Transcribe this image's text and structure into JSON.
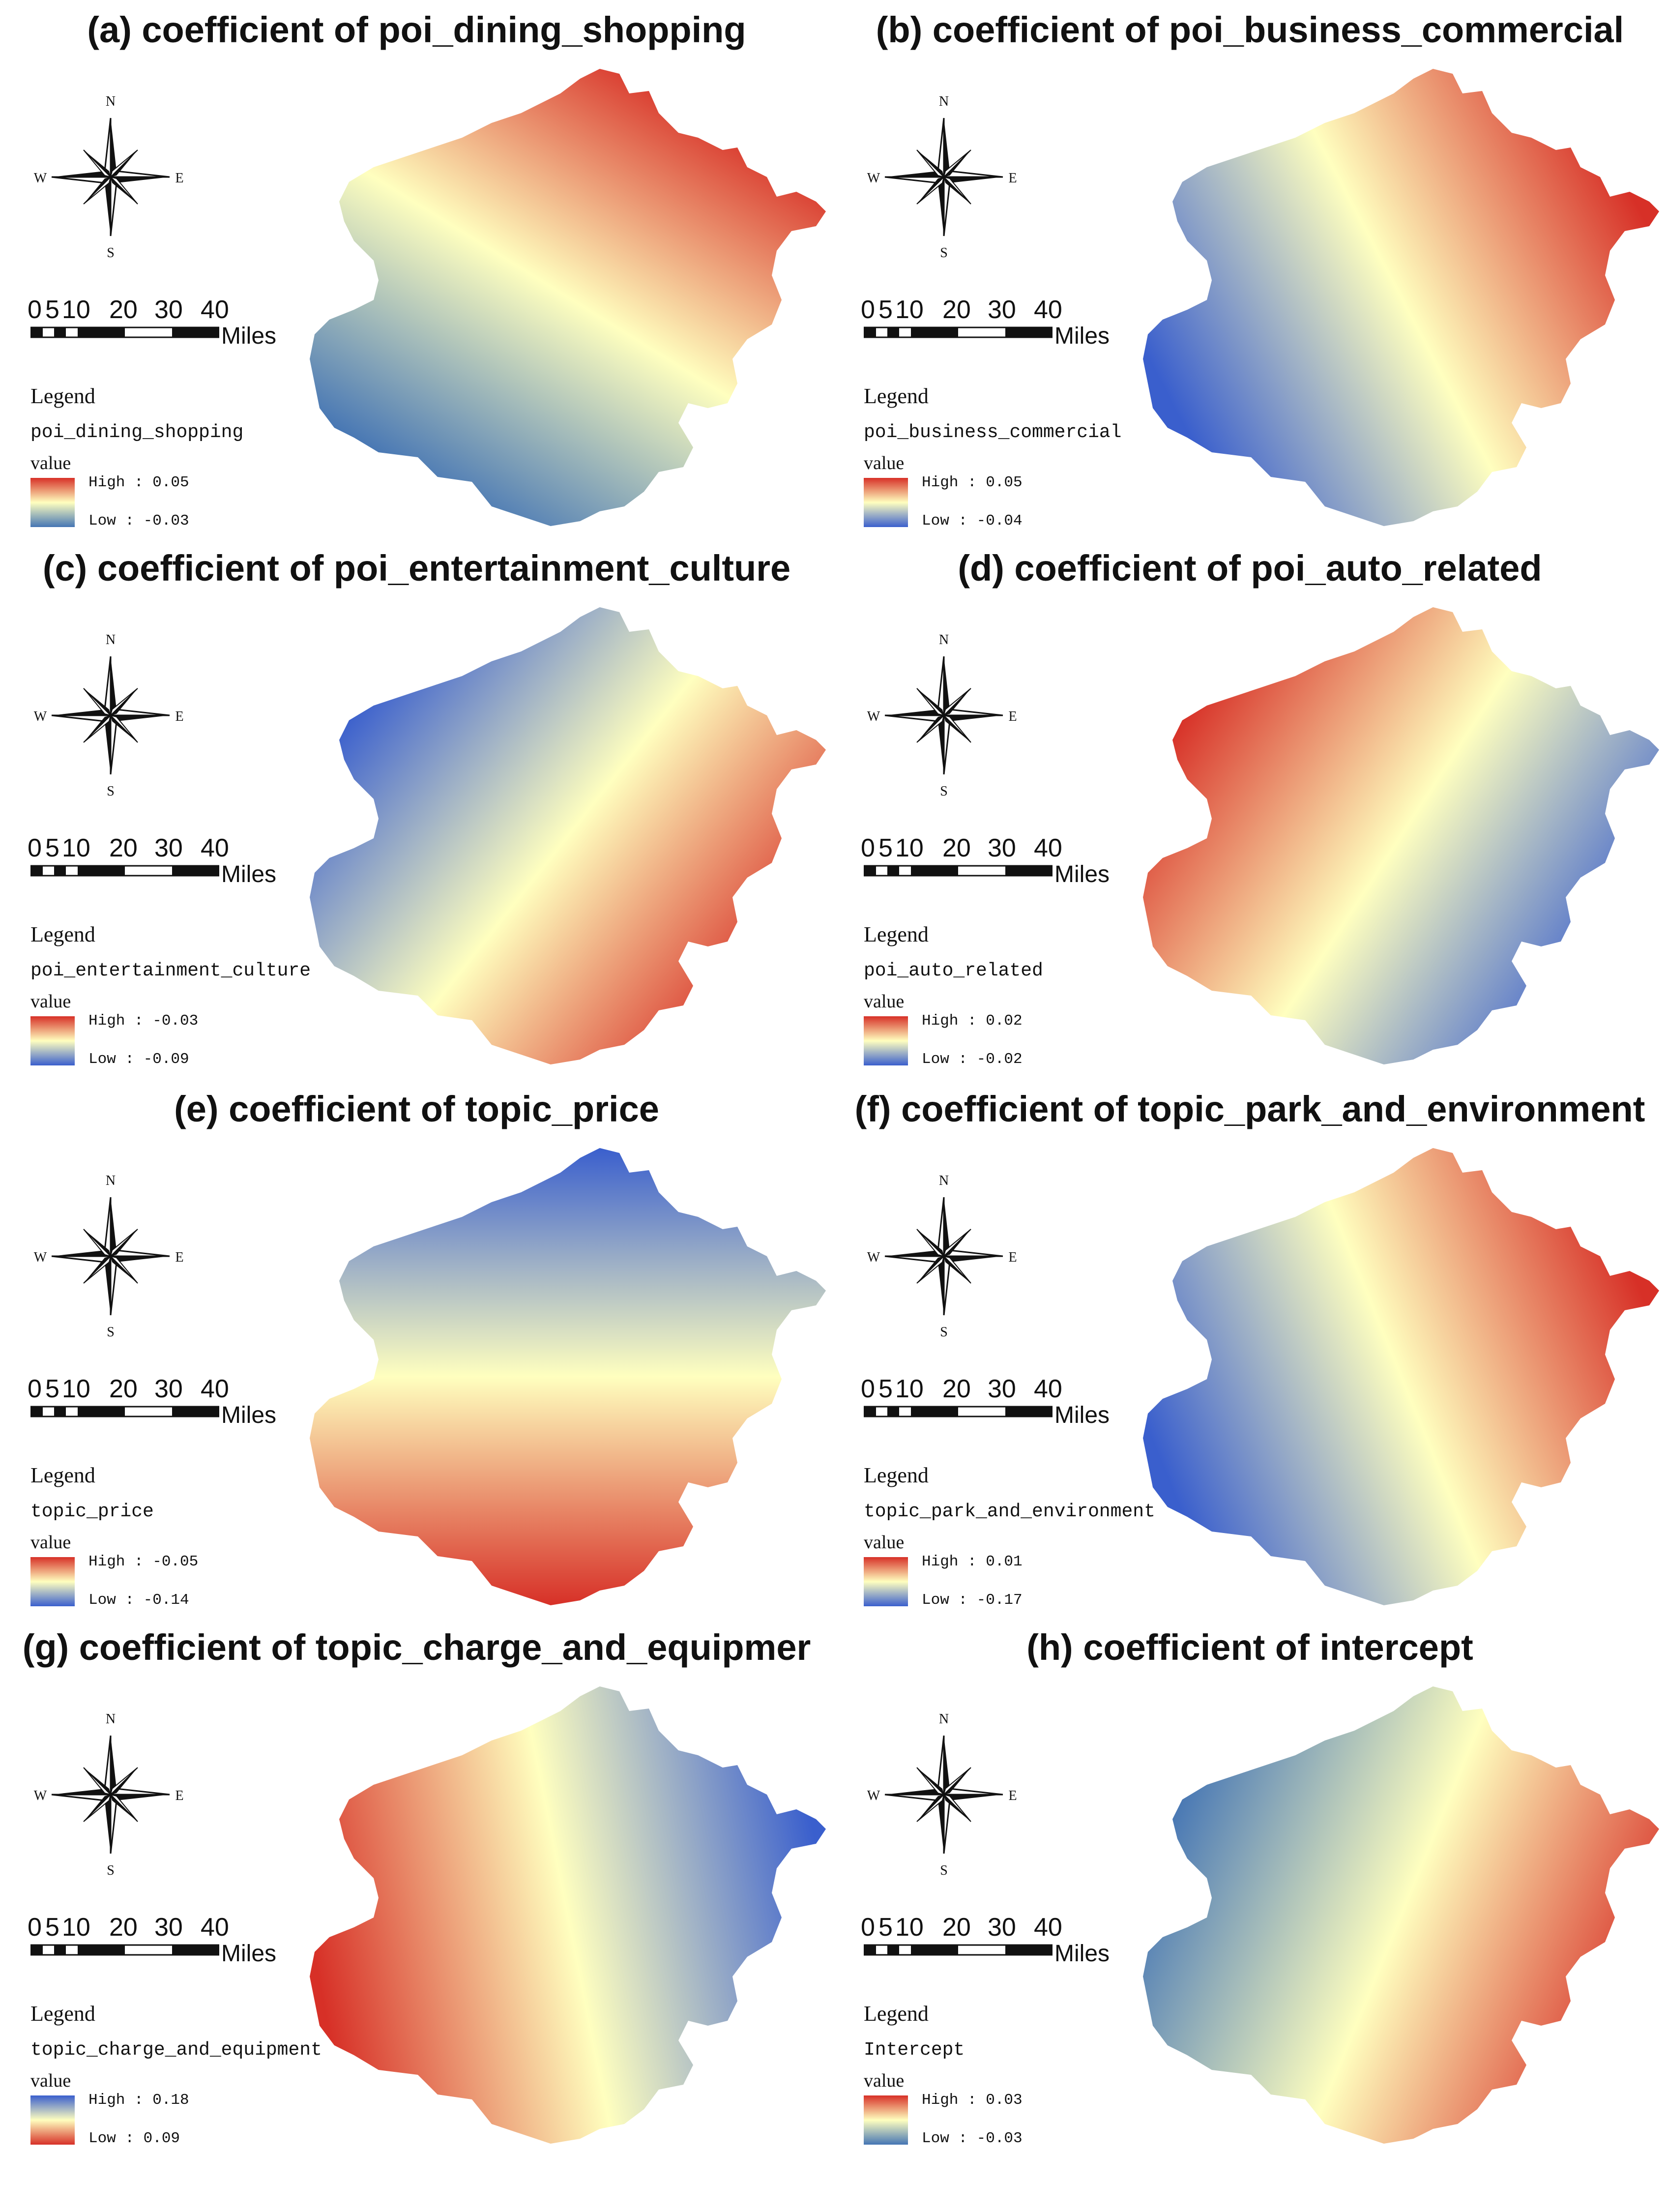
{
  "common": {
    "compass_labels": {
      "n": "N",
      "s": "S",
      "e": "E",
      "w": "W"
    },
    "scale_ticks": [
      "0",
      "5",
      "10",
      "20",
      "30",
      "40"
    ],
    "scale_unit": "Miles",
    "legend_title": "Legend",
    "value_label": "value",
    "high_prefix": "High : ",
    "low_prefix": "Low : "
  },
  "panels": [
    {
      "title": "(a) coefficient of poi_dining_shopping",
      "field": "poi_dining_shopping",
      "high": "0.05",
      "low": "-0.03",
      "ramp": {
        "high_color": "#d73027",
        "mid_color": "#ffffbf",
        "low_color": "#4575b4"
      },
      "surface": {
        "gradient_direction_deg": 125,
        "high_side": "west",
        "low_side": "east"
      }
    },
    {
      "title": "(b) coefficient of poi_business_commercial",
      "field": "poi_business_commercial",
      "high": "0.05",
      "low": "-0.04",
      "ramp": {
        "high_color": "#d73027",
        "mid_color": "#ffffbf",
        "low_color": "#3a5fcd"
      },
      "surface": {
        "gradient_direction_deg": 155,
        "high_side": "north-east",
        "low_side": "south-west"
      }
    },
    {
      "title": "(c) coefficient of poi_entertainment_culture",
      "field": "poi_entertainment_culture",
      "high": "-0.03",
      "low": "-0.09",
      "ramp": {
        "high_color": "#d73027",
        "mid_color": "#ffffbf",
        "low_color": "#3a5fcd"
      },
      "surface": {
        "gradient_direction_deg": 215,
        "high_side": "south-east",
        "low_side": "north-west"
      }
    },
    {
      "title": "(d) coefficient of poi_auto_related",
      "field": "poi_auto_related",
      "high": "0.02",
      "low": "-0.02",
      "ramp": {
        "high_color": "#d73027",
        "mid_color": "#ffffbf",
        "low_color": "#3a5fcd"
      },
      "surface": {
        "gradient_direction_deg": 30,
        "high_side": "south-west",
        "low_side": "north-east"
      }
    },
    {
      "title": "(e) coefficient of topic_price",
      "field": "topic_price",
      "high": "-0.05",
      "low": "-0.14",
      "ramp": {
        "high_color": "#d73027",
        "mid_color": "#ffffbf",
        "low_color": "#3a5fcd"
      },
      "surface": {
        "gradient_direction_deg": 270,
        "high_side": "east",
        "low_side": "west"
      }
    },
    {
      "title": "(f) coefficient of topic_park_and_environment",
      "field": "topic_park_and_environment",
      "high": "0.01",
      "low": "-0.17",
      "ramp": {
        "high_color": "#d73027",
        "mid_color": "#ffffbf",
        "low_color": "#3a5fcd"
      },
      "surface": {
        "gradient_direction_deg": 160,
        "high_side": "north-west",
        "low_side": "south-east"
      }
    },
    {
      "title": "(g) coefficient of topic_charge_and_equipmer",
      "field": "topic_charge_and_equipment",
      "high": "0.18",
      "low": "0.09",
      "ramp": {
        "high_color": "#3a5fcd",
        "mid_color": "#ffffbf",
        "low_color": "#d73027"
      },
      "surface": {
        "gradient_direction_deg": 170,
        "high_side": "south",
        "low_side": "north"
      }
    },
    {
      "title": "(h) coefficient of intercept",
      "field": "Intercept",
      "high": "0.03",
      "low": "-0.03",
      "ramp": {
        "high_color": "#d73027",
        "mid_color": "#ffffbf",
        "low_color": "#4575b4"
      },
      "surface": {
        "gradient_direction_deg": 200,
        "high_side": "south-east",
        "low_side": "north-west"
      }
    }
  ]
}
